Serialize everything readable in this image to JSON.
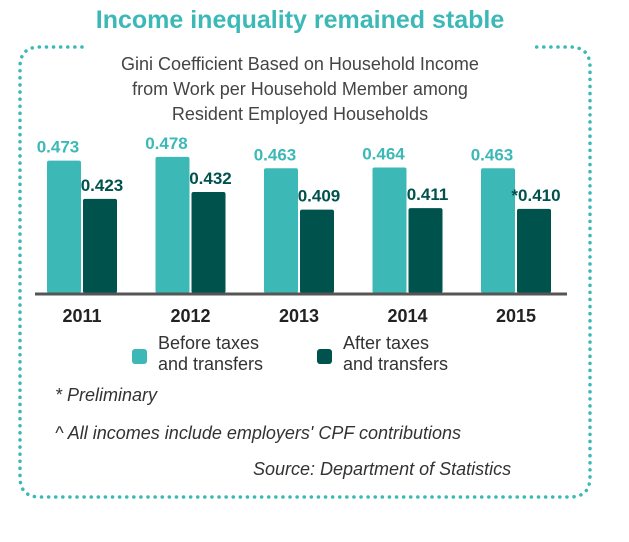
{
  "header": {
    "headline": "Income inequality remained stable"
  },
  "chart_data": {
    "type": "bar",
    "title": "Gini Coefficient Based on Household Income from Work per Household Member among Resident Employed Households",
    "title_lines": [
      "Gini Coefficient Based on Household Income",
      "from Work per Household Member among",
      "Resident Employed Households"
    ],
    "categories": [
      "2011",
      "2012",
      "2013",
      "2014",
      "2015"
    ],
    "series": [
      {
        "name": "Before taxes and transfers",
        "name_lines": [
          "Before taxes",
          "and transfers"
        ],
        "color": "#3cb9b7",
        "values": [
          0.473,
          0.478,
          0.463,
          0.464,
          0.463
        ],
        "labels": [
          "0.473",
          "0.478",
          "0.463",
          "0.464",
          "0.463"
        ]
      },
      {
        "name": "After taxes and transfers",
        "name_lines": [
          "After taxes",
          "and transfers"
        ],
        "color": "#00524c",
        "values": [
          0.423,
          0.432,
          0.409,
          0.411,
          0.41
        ],
        "labels": [
          "0.423",
          "0.432",
          "0.409",
          "0.411",
          "*0.410"
        ]
      }
    ],
    "ylim": [
      0.3,
      0.5
    ],
    "grid": false,
    "legend_position": "bottom"
  },
  "notes": {
    "preliminary": "* Preliminary",
    "cpf": "^ All incomes include employers' CPF contributions",
    "source": "Source: Department of Statistics"
  }
}
